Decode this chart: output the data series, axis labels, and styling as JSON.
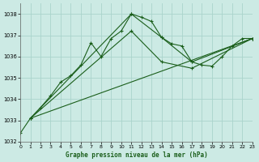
{
  "title": "Graphe pression niveau de la mer (hPa)",
  "bg_color": "#cceae4",
  "grid_color": "#aad4cc",
  "line_color": "#1a5e1a",
  "x_min": 0,
  "x_max": 23,
  "y_min": 1032,
  "y_max": 1038.5,
  "y_ticks": [
    1032,
    1033,
    1034,
    1035,
    1036,
    1037,
    1038
  ],
  "x_ticks": [
    0,
    1,
    2,
    3,
    4,
    5,
    6,
    7,
    8,
    9,
    10,
    11,
    12,
    13,
    14,
    15,
    16,
    17,
    18,
    19,
    20,
    21,
    22,
    23
  ],
  "series1": {
    "x": [
      0,
      1,
      2,
      3,
      4,
      5,
      6,
      7,
      8,
      9,
      10,
      11,
      12,
      13,
      14,
      15,
      16,
      17,
      18,
      19,
      20,
      21,
      22,
      23
    ],
    "y": [
      1032.4,
      1033.1,
      1033.6,
      1034.15,
      1034.8,
      1035.1,
      1035.6,
      1036.65,
      1036.0,
      1036.85,
      1037.2,
      1038.0,
      1037.85,
      1037.65,
      1036.9,
      1036.6,
      1036.5,
      1035.75,
      1035.6,
      1035.55,
      1036.0,
      1036.5,
      1036.85,
      1036.85
    ]
  },
  "series2": {
    "x": [
      1,
      11,
      14,
      17,
      23
    ],
    "y": [
      1033.1,
      1038.0,
      1036.9,
      1035.75,
      1036.85
    ]
  },
  "series3": {
    "x": [
      1,
      11,
      14,
      17,
      23
    ],
    "y": [
      1033.1,
      1037.2,
      1035.75,
      1035.45,
      1036.85
    ]
  },
  "series4": {
    "x": [
      1,
      23
    ],
    "y": [
      1033.1,
      1036.85
    ]
  }
}
